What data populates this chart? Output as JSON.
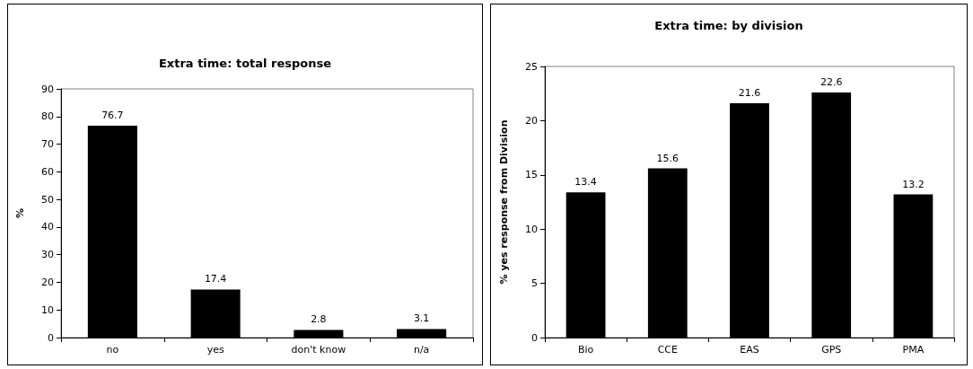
{
  "chart_data": [
    {
      "type": "bar",
      "title": "Extra time: total response",
      "ylabel": "%",
      "categories": [
        "no",
        "yes",
        "don't know",
        "n/a"
      ],
      "series": [
        {
          "color": "#000000",
          "values": [
            76.7,
            17.4,
            2.8,
            3.1
          ]
        }
      ],
      "ylim": [
        0,
        90
      ],
      "yticks": [
        0,
        10,
        20,
        30,
        40,
        50,
        60,
        70,
        80,
        90
      ],
      "data_labels": true,
      "grid": false
    },
    {
      "type": "bar",
      "title": "Extra time: by division",
      "ylabel": "% yes response from Division",
      "categories": [
        "Bio",
        "CCE",
        "EAS",
        "GPS",
        "PMA"
      ],
      "series": [
        {
          "color": "#000000",
          "values": [
            13.4,
            15.6,
            21.6,
            22.6,
            13.2
          ]
        }
      ],
      "ylim": [
        0,
        25
      ],
      "yticks": [
        0,
        5,
        10,
        15,
        20,
        25
      ],
      "data_labels": true,
      "grid": false
    }
  ]
}
